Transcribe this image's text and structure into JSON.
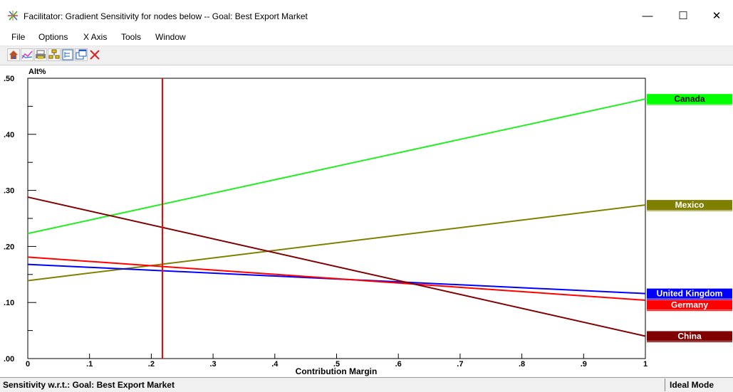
{
  "window": {
    "title": "Facilitator: Gradient Sensitivity for nodes below -- Goal: Best Export Market",
    "minimize_glyph": "—",
    "maximize_glyph": "☐",
    "close_glyph": "✕"
  },
  "menu": [
    {
      "label": "File"
    },
    {
      "label": "Options"
    },
    {
      "label": "X Axis"
    },
    {
      "label": "Tools"
    },
    {
      "label": "Window"
    }
  ],
  "toolbar": {
    "icons": [
      "home-icon",
      "chart-icon",
      "print-icon",
      "hierarchy-icon",
      "tree-icon",
      "windows-icon",
      "close-x-icon"
    ],
    "close_color": "#e02020"
  },
  "chart_data": {
    "type": "line",
    "ylabel": "Alt%",
    "xlabel": "Contribution Margin",
    "xlim": [
      0,
      1
    ],
    "ylim": [
      0,
      0.5
    ],
    "x_ticks": [
      "0",
      ".1",
      ".2",
      ".3",
      ".4",
      ".5",
      ".6",
      ".7",
      ".8",
      ".9",
      "1"
    ],
    "y_ticks": [
      ".00",
      ".10",
      ".20",
      ".30",
      ".40",
      ".50"
    ],
    "current_value": 0.218,
    "current_value_color": "#ff0000",
    "x": [
      0,
      1
    ],
    "series": [
      {
        "name": "Canada",
        "values": [
          0.223,
          0.463
        ],
        "color": "#22ee22",
        "label_bg": "#00ff00",
        "label_fg": "#000000"
      },
      {
        "name": "Mexico",
        "values": [
          0.139,
          0.274
        ],
        "color": "#808000",
        "label_bg": "#808000",
        "label_fg": "#ffffff"
      },
      {
        "name": "United Kingdom",
        "values": [
          0.168,
          0.116
        ],
        "color": "#0000ff",
        "label_bg": "#0000ff",
        "label_fg": "#ffffff"
      },
      {
        "name": "Germany",
        "values": [
          0.181,
          0.104
        ],
        "color": "#ff0000",
        "label_bg": "#ff0000",
        "label_fg": "#ffffff"
      },
      {
        "name": "China",
        "values": [
          0.288,
          0.04
        ],
        "color": "#800000",
        "label_bg": "#800000",
        "label_fg": "#ffffff"
      }
    ]
  },
  "status": {
    "left": "Sensitivity w.r.t.: Goal: Best Export Market",
    "right": "Ideal Mode"
  }
}
